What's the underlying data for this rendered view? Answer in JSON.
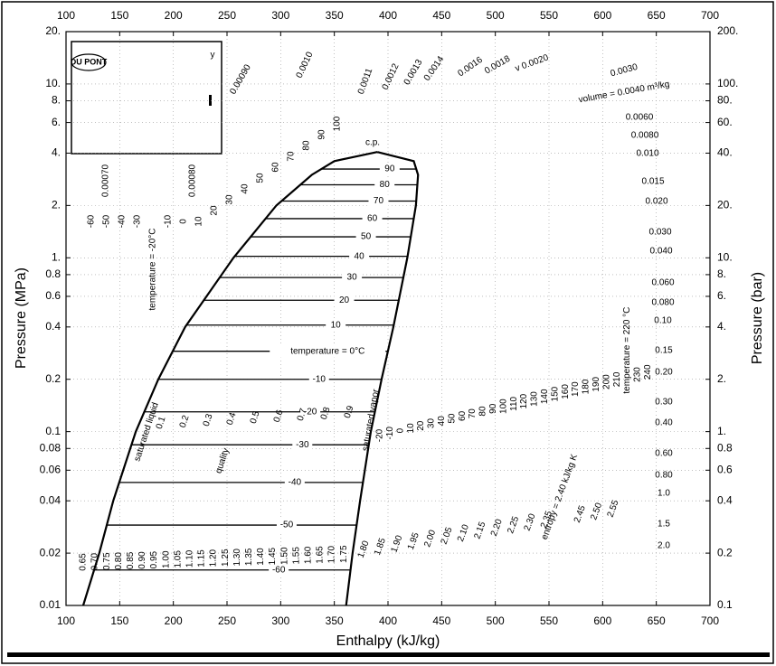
{
  "chart_data": {
    "type": "line",
    "x_label": "Enthalpy (kJ/kg)",
    "y_label": "Pressure (MPa)",
    "y2_label": "Pressure (bar)",
    "xlim": [
      100,
      700
    ],
    "xticks": [
      100,
      150,
      200,
      250,
      300,
      350,
      400,
      450,
      500,
      550,
      600,
      650,
      700
    ],
    "ylim": [
      0.01,
      20
    ],
    "yticks": [
      {
        "value": 20,
        "label": "20."
      },
      {
        "value": 10,
        "label": "10."
      },
      {
        "value": 8,
        "label": "8."
      },
      {
        "value": 6,
        "label": "6."
      },
      {
        "value": 4,
        "label": "4."
      },
      {
        "value": 2,
        "label": "2."
      },
      {
        "value": 1,
        "label": "1."
      },
      0.8,
      0.6,
      0.4,
      0.2,
      0.1,
      0.08,
      0.06,
      0.04,
      0.02,
      0.01
    ],
    "y2lim": [
      0.1,
      200
    ],
    "y2ticks": [
      {
        "value": 200,
        "label": "200."
      },
      {
        "value": 100,
        "label": "100."
      },
      {
        "value": 80,
        "label": "80."
      },
      {
        "value": 60,
        "label": "60."
      },
      {
        "value": 40,
        "label": "40."
      },
      {
        "value": 20,
        "label": "20."
      },
      {
        "value": 10,
        "label": "10."
      },
      {
        "value": 8,
        "label": "8."
      },
      {
        "value": 6,
        "label": "6."
      },
      {
        "value": 4,
        "label": "4."
      },
      {
        "value": 2,
        "label": "2."
      },
      {
        "value": 1,
        "label": "1."
      },
      0.8,
      0.6,
      0.4,
      0.2,
      0.1
    ],
    "ylog": true,
    "grid": true,
    "series": [
      {
        "name": "saturated liquid",
        "color": "#000000",
        "x": [
          116,
          131,
          144,
          165,
          186,
          211,
          256,
          296,
          329,
          350,
          390
        ],
        "values": [
          0.01,
          0.02,
          0.04,
          0.1,
          0.2,
          0.4,
          1,
          2,
          3,
          3.6,
          4.06
        ]
      },
      {
        "name": "saturated vapor",
        "color": "#000000",
        "x": [
          361,
          367,
          374,
          384,
          394,
          405,
          418,
          426,
          428,
          424,
          390
        ],
        "values": [
          0.01,
          0.02,
          0.04,
          0.1,
          0.2,
          0.4,
          1,
          2,
          3,
          3.6,
          4.06
        ]
      }
    ],
    "saturation_isotherms": [
      {
        "label": "90",
        "pressure": 3.24
      },
      {
        "label": "80",
        "pressure": 2.63
      },
      {
        "label": "70",
        "pressure": 2.12
      },
      {
        "label": "60",
        "pressure": 1.68
      },
      {
        "label": "50",
        "pressure": 1.32
      },
      {
        "label": "40",
        "pressure": 1.02
      },
      {
        "label": "30",
        "pressure": 0.77
      },
      {
        "label": "20",
        "pressure": 0.57
      },
      {
        "label": "10",
        "pressure": 0.41
      },
      {
        "label": "temperature = 0°C",
        "pressure": 0.29
      },
      {
        "label": "-10",
        "pressure": 0.2
      },
      {
        "label": "-20",
        "pressure": 0.13
      },
      {
        "label": "-30",
        "pressure": 0.084
      },
      {
        "label": "-40",
        "pressure": 0.051
      },
      {
        "label": "-50",
        "pressure": 0.029
      },
      {
        "label": "-60",
        "pressure": 0.016
      }
    ],
    "critical_point": "c.p.",
    "quality_title": "quality",
    "quality_labels": [
      "0.1",
      "0.2",
      "0.3",
      "0.4",
      "0.5",
      "0.6",
      "0.7",
      "0.8",
      "0.9"
    ],
    "liquid_temperature_labels": [
      "-60",
      "-50",
      "-40",
      "-30",
      "temperature = -20°C",
      "-10",
      "0",
      "10",
      "20",
      "30",
      "40",
      "50",
      "60",
      "70",
      "80",
      "90",
      "100"
    ],
    "liquid_volume_labels": [
      "0.00070",
      "0.00080"
    ],
    "volume_labels": [
      "0.00090",
      "0.0010",
      "0.0011",
      "0.0012",
      "0.0013",
      "0.0014",
      "0.0016",
      "0.0018",
      "v 0.0020",
      "0.0030",
      "volume = 0.0040 m³/kg",
      "0.0060",
      "0.0080",
      "0.010",
      "0.015",
      "0.020",
      "0.030",
      "0.040",
      "0.060",
      "0.080",
      "0.10",
      "0.15",
      "0.20",
      "0.30",
      "0.40",
      "0.60",
      "0.80",
      "1.0",
      "1.5",
      "2.0"
    ],
    "superheat_temperature_labels": [
      "-20",
      "-10",
      "0",
      "10",
      "20",
      "30",
      "40",
      "50",
      "60",
      "70",
      "80",
      "90",
      "100",
      "110",
      "120",
      "130",
      "140",
      "150",
      "160",
      "170",
      "180",
      "190",
      "200",
      "210",
      "temperature = 220 °C",
      "230",
      "240"
    ],
    "entropy_labels": [
      "0.65",
      "0.70",
      "0.75",
      "0.80",
      "0.85",
      "0.90",
      "0.95",
      "1.00",
      "1.05",
      "1.10",
      "1.15",
      "1.20",
      "1.25",
      "1.30",
      "1.35",
      "1.40",
      "1.45",
      "1.50",
      "1.55",
      "1.60",
      "1.65",
      "1.70",
      "1.75",
      "1.80",
      "1.85",
      "1.90",
      "1.95",
      "2.00",
      "2.05",
      "2.10",
      "2.15",
      "2.20",
      "2.25",
      "2.30",
      "2.35",
      "entropy = 2.40 kJ/kg K",
      "2.45",
      "2.50",
      "2.55"
    ],
    "logo": "DU PONT",
    "logo_note": "y"
  }
}
